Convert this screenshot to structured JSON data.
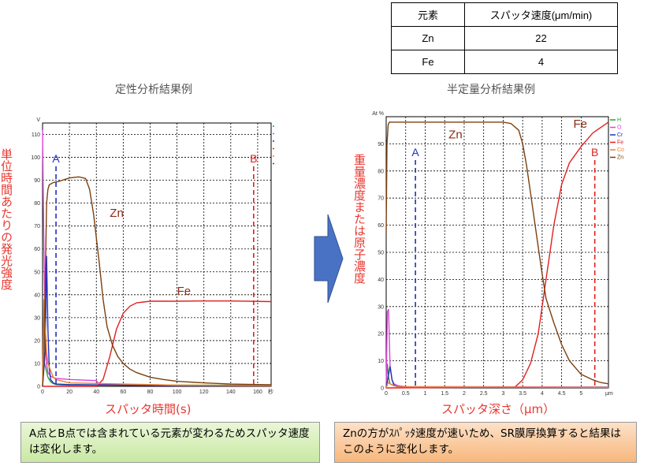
{
  "table": {
    "header": [
      "元素",
      "スパッタ速度(μm/min)"
    ],
    "rows": [
      [
        "Zn",
        "22"
      ],
      [
        "Fe",
        "4"
      ]
    ]
  },
  "left": {
    "title": "定性分析結果例",
    "ylabel": "単位時間あたりの発光強度",
    "xlabel": "スパッタ時間(s)",
    "note": "A点とB点では含まれている元素が変わるためスパッタ速度は変化します。"
  },
  "right": {
    "title": "半定量分析結果例",
    "ylabel": "重量濃度または原子濃度",
    "xlabel": "スパッタ深さ（μm）",
    "note": "Znの方がｽﾊﾟｯﾀ速度が速いため、SR膜厚換算すると結果はこのように変化します。"
  },
  "arrow_color": "#4a72c4",
  "chart_data": [
    {
      "type": "line",
      "y_unit": "V",
      "x_unit": "秒",
      "xlim": [
        0,
        170
      ],
      "ylim": [
        0,
        115
      ],
      "x_ticks": [
        0,
        20,
        40,
        60,
        80,
        100,
        120,
        140,
        160
      ],
      "y_ticks": [
        0,
        10,
        20,
        30,
        40,
        50,
        60,
        70,
        80,
        90,
        100,
        110
      ],
      "grid": true,
      "legend": [
        "H",
        "O",
        "Cr",
        "Fe",
        "Co",
        "Zn"
      ],
      "legend_position": "top-right",
      "series": [
        {
          "name": "H",
          "color": "#2ca02c",
          "x": [
            0,
            1,
            2,
            4,
            6,
            8,
            10,
            15,
            20,
            40,
            60,
            100,
            170
          ],
          "y": [
            10,
            10.5,
            9,
            4,
            2,
            1.2,
            0.8,
            0.6,
            0.5,
            0.5,
            0.5,
            0.5,
            0.5
          ]
        },
        {
          "name": "O",
          "color": "#e040e0",
          "x": [
            0,
            1,
            2,
            3,
            4,
            6,
            8,
            10,
            20,
            40,
            42,
            60,
            100,
            170
          ],
          "y": [
            112,
            60,
            25,
            10,
            6,
            4.5,
            3.8,
            3.5,
            3,
            2.5,
            1,
            0.5,
            0.3,
            0.3
          ]
        },
        {
          "name": "Cr",
          "color": "#2030c0",
          "x": [
            0,
            2,
            3,
            4,
            5,
            6,
            8,
            10,
            20,
            60,
            170
          ],
          "y": [
            0,
            15,
            57,
            25,
            8,
            3,
            1.5,
            1,
            0.8,
            0.5,
            0.3
          ]
        },
        {
          "name": "Fe",
          "color": "#e02020",
          "x": [
            0,
            40,
            45,
            50,
            55,
            60,
            65,
            70,
            80,
            100,
            120,
            140,
            170
          ],
          "y": [
            0,
            0,
            3,
            13,
            25,
            32,
            35,
            36.5,
            37.2,
            37.2,
            37.3,
            37.3,
            37
          ]
        },
        {
          "name": "Co",
          "color": "#f08030",
          "x": [
            0,
            1,
            2,
            3,
            4,
            6,
            8,
            10,
            20,
            100,
            170
          ],
          "y": [
            0,
            38,
            26,
            15,
            10,
            7,
            4,
            3,
            1.5,
            0.5,
            0.3
          ]
        },
        {
          "name": "Zn",
          "color": "#7a4010",
          "x": [
            0,
            1,
            2,
            3,
            4,
            5,
            8,
            12,
            20,
            27,
            32,
            35,
            38,
            42,
            45,
            48,
            52,
            56,
            60,
            65,
            70,
            80,
            90,
            100,
            120,
            140,
            160,
            170
          ],
          "y": [
            0,
            10,
            45,
            80,
            86,
            88,
            89,
            89.5,
            91,
            91.5,
            90.8,
            86,
            75,
            55,
            38,
            26,
            18,
            13,
            10,
            7.5,
            6,
            4,
            3,
            2.2,
            1.5,
            1,
            0.8,
            0.7
          ]
        }
      ],
      "annotations": [
        {
          "text": "A",
          "x": 10,
          "color": "#2030c0"
        },
        {
          "text": "B",
          "x": 157,
          "color": "#e02020"
        },
        {
          "text": "Zn",
          "x": 50,
          "y": 74
        },
        {
          "text": "Fe",
          "x": 100,
          "y": 40
        }
      ]
    },
    {
      "type": "line",
      "y_unit": "At %",
      "x_unit": "μm",
      "xlim": [
        0,
        5.7
      ],
      "ylim": [
        0,
        100
      ],
      "x_ticks": [
        0,
        0.5,
        1,
        1.5,
        2,
        2.5,
        3,
        3.5,
        4,
        4.5,
        5
      ],
      "y_ticks": [
        0,
        10,
        20,
        30,
        40,
        50,
        60,
        70,
        80,
        90
      ],
      "grid": true,
      "legend": [
        "H",
        "O",
        "Cr",
        "Fe",
        "Co",
        "Zn"
      ],
      "legend_position": "top-right",
      "series": [
        {
          "name": "H",
          "color": "#2ca02c",
          "x": [
            0,
            0.03,
            0.06,
            0.1,
            0.2,
            0.3,
            0.5,
            5.7
          ],
          "y": [
            0,
            9,
            4,
            1.5,
            0.8,
            0.5,
            0.3,
            0.3
          ]
        },
        {
          "name": "O",
          "color": "#e040e0",
          "x": [
            0,
            0.03,
            0.06,
            0.1,
            0.15,
            0.2,
            0.3,
            0.5,
            5.7
          ],
          "y": [
            0,
            28,
            29,
            8,
            3,
            1.5,
            0.8,
            0.5,
            0.3
          ]
        },
        {
          "name": "Cr",
          "color": "#2030c0",
          "x": [
            0,
            0.05,
            0.1,
            0.15,
            0.2,
            0.3,
            0.5,
            5.7
          ],
          "y": [
            0,
            4,
            8,
            3,
            1,
            0.5,
            0.2,
            0.2
          ]
        },
        {
          "name": "Fe",
          "color": "#e02020",
          "x": [
            0,
            3.3,
            3.5,
            3.7,
            3.9,
            4.0,
            4.1,
            4.2,
            4.3,
            4.5,
            4.7,
            5.0,
            5.3,
            5.6,
            5.7
          ],
          "y": [
            0,
            0.3,
            3,
            9,
            20,
            30,
            40,
            50,
            60,
            75,
            83,
            89,
            94,
            97,
            98
          ]
        },
        {
          "name": "Co",
          "color": "#f08030",
          "x": [
            0,
            0.05,
            0.1,
            0.2,
            0.3,
            5.7
          ],
          "y": [
            0,
            2,
            1.5,
            0.8,
            0.4,
            0.2
          ]
        },
        {
          "name": "Zn",
          "color": "#7a4010",
          "x": [
            0,
            0.02,
            0.05,
            0.08,
            0.1,
            0.15,
            0.3,
            0.5,
            1,
            2,
            3,
            3.2,
            3.4,
            3.5,
            3.6,
            3.7,
            3.8,
            3.9,
            4.0,
            4.1,
            4.3,
            4.5,
            4.7,
            5.0,
            5.3,
            5.5,
            5.7
          ],
          "y": [
            57,
            90,
            97,
            98,
            98,
            98,
            98,
            98,
            98,
            98,
            98,
            97.5,
            95,
            90,
            82,
            72,
            62,
            52,
            42,
            33,
            24,
            16,
            10,
            5,
            3,
            2,
            1.5
          ]
        }
      ],
      "annotations": [
        {
          "text": "A",
          "x": 0.75,
          "color": "#2030c0"
        },
        {
          "text": "B",
          "x": 5.35,
          "color": "#e02020"
        },
        {
          "text": "Zn",
          "x": 1.6,
          "y": 92
        },
        {
          "text": "Fe",
          "x": 4.8,
          "y": 96
        }
      ]
    }
  ]
}
